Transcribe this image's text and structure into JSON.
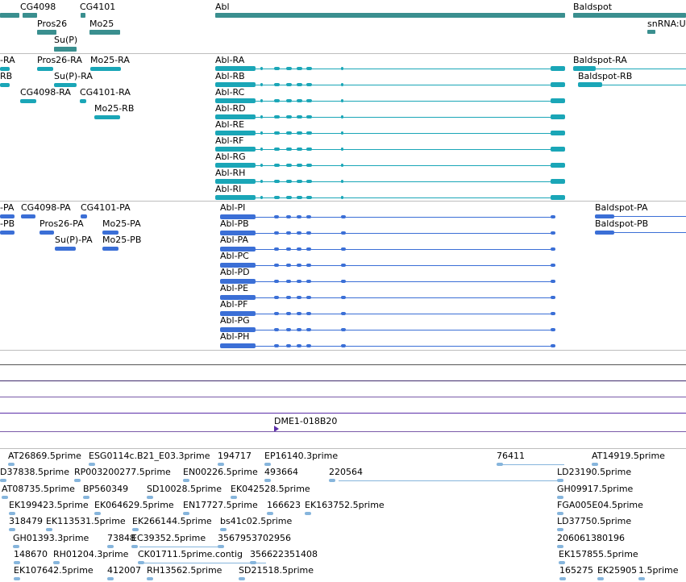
{
  "genes": {
    "labels": [
      "CG4098",
      "CG4101",
      "Abl",
      "Baldspot",
      "Pros26",
      "Mo25",
      "Su(P)",
      "snRNA:U"
    ]
  },
  "transcripts": {
    "left_labels": [
      "Pros26-RA",
      "Mo25-RA",
      "Su(P)-RA",
      "CG4098-RA",
      "CG4101-RA",
      "Mo25-RB"
    ],
    "left_partial": [
      "-RA",
      "RB"
    ],
    "abl": [
      "Abl-RA",
      "Abl-RB",
      "Abl-RC",
      "Abl-RD",
      "Abl-RE",
      "Abl-RF",
      "Abl-RG",
      "Abl-RH",
      "Abl-RI"
    ],
    "baldspot": [
      "Baldspot-RA",
      "Baldspot-RB"
    ]
  },
  "proteins": {
    "left_labels": [
      "CG4098-PA",
      "CG4101-PA",
      "Pros26-PA",
      "Mo25-PA",
      "Su(P)-PA",
      "Mo25-PB"
    ],
    "left_partial": [
      "-PA",
      "-PB"
    ],
    "abl": [
      "Abl-PI",
      "Abl-PB",
      "Abl-PA",
      "Abl-PC",
      "Abl-PD",
      "Abl-PE",
      "Abl-PF",
      "Abl-PG",
      "Abl-PH"
    ],
    "baldspot": [
      "Baldspot-PA",
      "Baldspot-PB"
    ]
  },
  "clone": {
    "label": "DME1-018B20"
  },
  "ests": {
    "rows": [
      [
        "AT26869.5prime",
        "ESG0114c.B21_E03.3prime",
        "194717",
        "EP16140.3prime",
        "76411",
        "AT14919.5prime"
      ],
      [
        "D37838.5prime",
        "RP003200277.5prime",
        "EN00226.5prime",
        "493664",
        "220564",
        "LD23190.5prime"
      ],
      [
        "AT08735.5prime",
        "BP560349",
        "SD10028.5prime",
        "EK042528.5prime",
        "GH09917.5prime"
      ],
      [
        "EK199423.5prime",
        "EK064629.5prime",
        "EN17727.5prime",
        "166623",
        "EK163752.5prime",
        "FGA005E04.5prime"
      ],
      [
        "318479",
        "EK113531.5prime",
        "EK266144.5prime",
        "bs41c02.5prime",
        "LD37750.5prime"
      ],
      [
        "GH01393.3prime",
        "73848",
        "EC39352.5prime",
        "3567953702956",
        "206061380196"
      ],
      [
        "148670",
        "RH01204.3prime",
        "CK01711.5prime.contig",
        "356622351408",
        "EK157855.5prime"
      ],
      [
        "EK107642.5prime",
        "412007",
        "RH13562.5prime",
        "SD21518.5prime",
        "165275",
        "EK25905",
        "1.5prime"
      ]
    ]
  },
  "colors": {
    "gene": "#3a8f8f",
    "transcript": "#1aa6b7",
    "protein": "#3b6fd6",
    "est": "#86b5dc",
    "clone": "#5b2ea8",
    "divider": "#bdbdbd"
  }
}
